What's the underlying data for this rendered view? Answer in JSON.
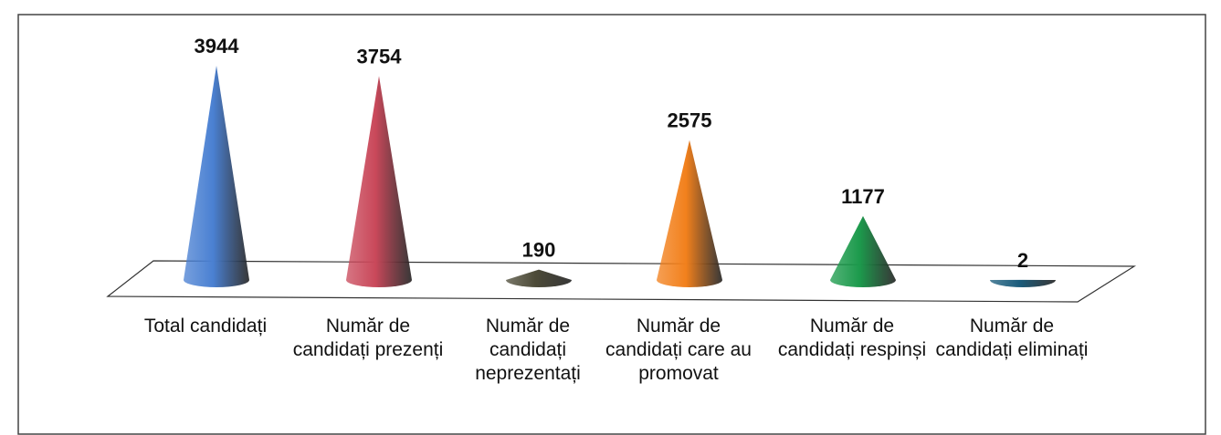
{
  "chart_data": {
    "type": "cone",
    "categories": [
      "Total candidați",
      "Număr de candidați prezenți",
      "Număr de candidați neprezentați",
      "Număr de candidați care au promovat",
      "Număr de candidați respinși",
      "Număr de candidați eliminați"
    ],
    "values": [
      3944,
      3754,
      190,
      2575,
      1177,
      2
    ],
    "colors": [
      "#4a80d2",
      "#c9485a",
      "#4d4b38",
      "#f2801c",
      "#1c9a4c",
      "#1b5c7c"
    ]
  }
}
